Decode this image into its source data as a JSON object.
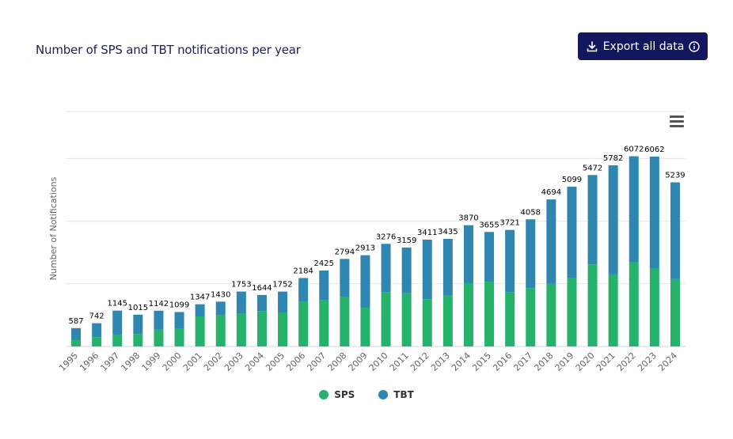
{
  "header": {
    "title": "Number of SPS and TBT notifications per year",
    "export_label": "Export all data"
  },
  "colors": {
    "sps": "#25b36c",
    "tbt": "#2e86b1",
    "button_bg": "#13175f"
  },
  "icons": {
    "export": "download-icon",
    "info": "info-icon",
    "menu": "hamburger-menu-icon"
  },
  "chart_data": {
    "type": "bar",
    "stacked": true,
    "title": "Number of SPS and TBT notifications per year",
    "xlabel": "",
    "ylabel": "Number of Notifications",
    "ylim": [
      0,
      7500
    ],
    "grid": true,
    "legend_position": "bottom",
    "categories": [
      "1995",
      "1996",
      "1997",
      "1998",
      "1999",
      "2000",
      "2001",
      "2002",
      "2003",
      "2004",
      "2005",
      "2006",
      "2007",
      "2008",
      "2009",
      "2010",
      "2011",
      "2012",
      "2013",
      "2014",
      "2015",
      "2016",
      "2017",
      "2018",
      "2019",
      "2020",
      "2021",
      "2022",
      "2023",
      "2024"
    ],
    "series": [
      {
        "name": "SPS",
        "color": "#25b36c",
        "values": [
          200,
          300,
          360,
          400,
          540,
          560,
          960,
          1000,
          1050,
          1130,
          1070,
          1440,
          1480,
          1580,
          1250,
          1740,
          1700,
          1510,
          1620,
          2020,
          2070,
          1740,
          1860,
          2000,
          2180,
          2620,
          2300,
          2690,
          2500,
          2150
        ]
      },
      {
        "name": "TBT",
        "color": "#2e86b1",
        "values": [
          387,
          442,
          785,
          615,
          602,
          539,
          387,
          430,
          703,
          514,
          682,
          744,
          945,
          1214,
          1663,
          1536,
          1459,
          1901,
          1815,
          1850,
          1585,
          1981,
          2198,
          2694,
          2919,
          2852,
          3482,
          3382,
          3562,
          3089
        ]
      }
    ],
    "totals": [
      587,
      742,
      1145,
      1015,
      1142,
      1099,
      1347,
      1430,
      1753,
      1644,
      1752,
      2184,
      2425,
      2794,
      2913,
      3276,
      3159,
      3411,
      3435,
      3870,
      3655,
      3721,
      4058,
      4694,
      5099,
      5472,
      5782,
      6072,
      6062,
      5239
    ]
  }
}
